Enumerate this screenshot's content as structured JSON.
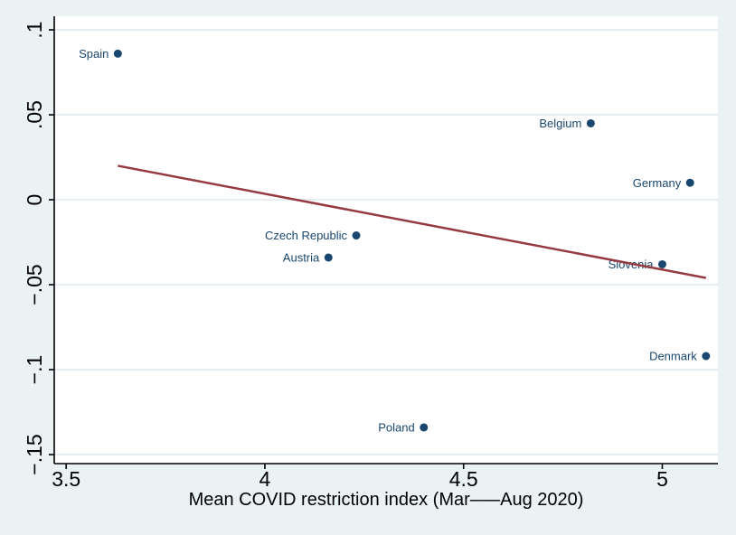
{
  "chart_data": {
    "type": "scatter",
    "title": "",
    "xlabel": "Mean COVID restriction index (Mar–––Aug 2020)",
    "ylabel": "",
    "xlim": [
      3.47,
      5.14
    ],
    "ylim": [
      -0.1553,
      0.108
    ],
    "grid": true,
    "legend": "none",
    "x_ticks": [
      {
        "value": 3.5,
        "label": "3.5"
      },
      {
        "value": 4.0,
        "label": "4"
      },
      {
        "value": 4.5,
        "label": "4.5"
      },
      {
        "value": 5.0,
        "label": "5"
      }
    ],
    "y_ticks": [
      {
        "value": 0.1,
        "label": ".1"
      },
      {
        "value": 0.05,
        "label": ".05"
      },
      {
        "value": 0.0,
        "label": "0"
      },
      {
        "value": -0.05,
        "label": "−.05"
      },
      {
        "value": -0.1,
        "label": "−.1"
      },
      {
        "value": -0.15,
        "label": "−.15"
      }
    ],
    "points": [
      {
        "label": "Spain",
        "x": 3.63,
        "y": 0.086
      },
      {
        "label": "Belgium",
        "x": 4.82,
        "y": 0.045
      },
      {
        "label": "Germany",
        "x": 5.07,
        "y": 0.01
      },
      {
        "label": "Czech Republic",
        "x": 4.23,
        "y": -0.021
      },
      {
        "label": "Austria",
        "x": 4.16,
        "y": -0.034
      },
      {
        "label": "Slovenia",
        "x": 5.0,
        "y": -0.038
      },
      {
        "label": "Denmark",
        "x": 5.11,
        "y": -0.092
      },
      {
        "label": "Poland",
        "x": 4.4,
        "y": -0.134
      }
    ],
    "fit_line": {
      "x1": 3.63,
      "y1": 0.02,
      "x2": 5.11,
      "y2": -0.046
    },
    "colors": {
      "background": "#eaf2f3",
      "plot_background": "#ffffff",
      "gridline": "#e6eef2",
      "axis": "#000000",
      "marker": "#1a476f",
      "marker_label": "#1a476f",
      "fit_line": "#963a40"
    }
  }
}
